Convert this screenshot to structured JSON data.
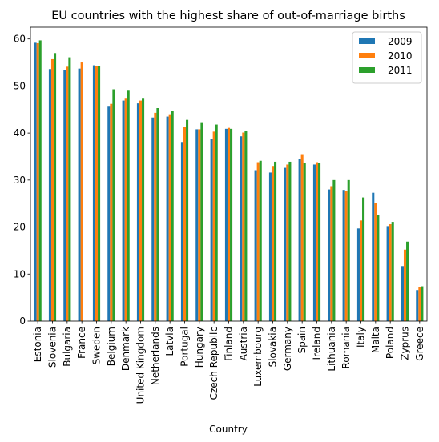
{
  "chart_data": {
    "type": "bar",
    "title": "EU countries with the highest share of out-of-marriage births",
    "xlabel": "Country",
    "ylabel": "",
    "ylim": [
      0,
      62.5
    ],
    "yticks": [
      0,
      10,
      20,
      30,
      40,
      50,
      60
    ],
    "legend_position": "top-right",
    "grid": false,
    "categories": [
      "Estonia",
      "Slovenia",
      "Bulgaria",
      "France",
      "Sweden",
      "Belgium",
      "Denmark",
      "United Kingdom",
      "Netherlands",
      "Latvia",
      "Portugal",
      "Hungary",
      "Czech Republic",
      "Finland",
      "Austria",
      "Luxembourg",
      "Slovakia",
      "Germany",
      "Spain",
      "Ireland",
      "Lithuania",
      "Romania",
      "Italy",
      "Malta",
      "Poland",
      "Zyprus",
      "Greece"
    ],
    "series": [
      {
        "name": "2009",
        "color": "#1f77b4",
        "values": [
          59.2,
          53.6,
          53.4,
          53.7,
          54.4,
          45.6,
          46.9,
          46.3,
          43.3,
          43.5,
          38.1,
          40.8,
          38.8,
          40.9,
          39.3,
          32.1,
          31.6,
          32.6,
          34.5,
          33.3,
          28.0,
          27.9,
          19.7,
          27.3,
          20.2,
          11.7,
          6.6
        ]
      },
      {
        "name": "2010",
        "color": "#ff7f0e",
        "values": [
          59.1,
          55.7,
          54.1,
          55.0,
          54.2,
          46.2,
          47.3,
          46.9,
          44.3,
          44.0,
          41.3,
          40.8,
          40.3,
          41.1,
          40.1,
          33.8,
          33.0,
          33.3,
          35.5,
          33.8,
          28.7,
          27.7,
          21.4,
          25.1,
          20.6,
          15.2,
          7.3
        ]
      },
      {
        "name": "2011",
        "color": "#2ca02c",
        "values": [
          59.7,
          57.0,
          56.1,
          0,
          54.3,
          49.3,
          49.0,
          47.3,
          45.3,
          44.7,
          42.8,
          42.3,
          41.8,
          40.9,
          40.4,
          34.1,
          33.9,
          33.9,
          33.7,
          33.6,
          30.0,
          30.0,
          26.3,
          22.6,
          21.1,
          16.9,
          7.4
        ]
      }
    ]
  }
}
